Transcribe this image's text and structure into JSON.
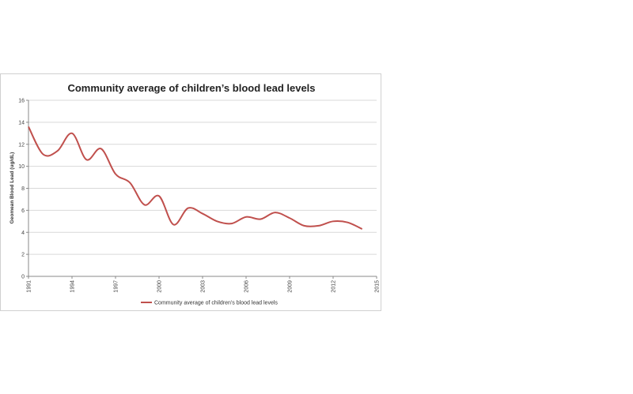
{
  "chart_data": {
    "type": "line",
    "title": "Community average of children’s blood lead levels",
    "ylabel": "Geomean Blood Lead (ug/dL)",
    "xlabel": "",
    "xlim": [
      1991,
      2015
    ],
    "ylim": [
      0,
      16
    ],
    "x_ticks": [
      1991,
      1994,
      1997,
      2000,
      2003,
      2006,
      2009,
      2012,
      2015
    ],
    "y_ticks": [
      0,
      2,
      4,
      6,
      8,
      10,
      12,
      14,
      16
    ],
    "grid": true,
    "legend_position": "bottom",
    "series": [
      {
        "name": "Community average of children’s blood lead levels",
        "color": "#c0504d",
        "x": [
          1991,
          1992,
          1993,
          1994,
          1995,
          1996,
          1997,
          1998,
          1999,
          2000,
          2001,
          2002,
          2003,
          2004,
          2005,
          2006,
          2007,
          2008,
          2009,
          2010,
          2011,
          2012,
          2013,
          2014
        ],
        "y": [
          13.6,
          11.1,
          11.4,
          13.0,
          10.6,
          11.6,
          9.3,
          8.5,
          6.5,
          7.3,
          4.7,
          6.2,
          5.7,
          5.0,
          4.8,
          5.4,
          5.2,
          5.8,
          5.3,
          4.6,
          4.6,
          5.0,
          4.9,
          4.3
        ]
      }
    ]
  }
}
